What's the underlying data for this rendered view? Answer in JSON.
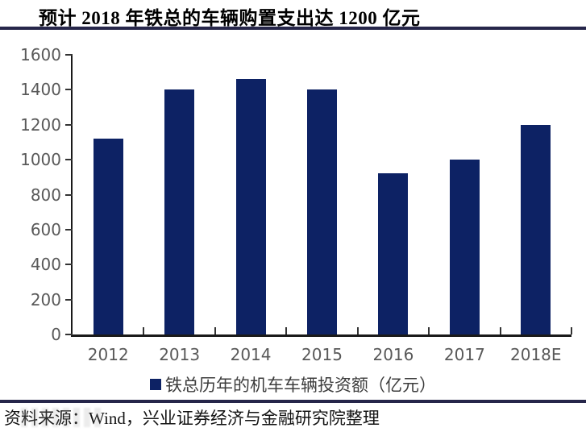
{
  "header": {
    "title": "预计 2018 年铁总的车辆购置支出达 1200 亿元"
  },
  "chart_data": {
    "type": "bar",
    "title": "预计 2018 年铁总的车辆购置支出达 1200 亿元",
    "categories": [
      "2012",
      "2013",
      "2014",
      "2015",
      "2016",
      "2017",
      "2018E"
    ],
    "series": [
      {
        "name": "铁总历年的机车车辆投资额（亿元）",
        "values": [
          1120,
          1400,
          1460,
          1400,
          920,
          1000,
          1200
        ]
      }
    ],
    "xlabel": "",
    "ylabel": "",
    "ylim": [
      0,
      1600
    ],
    "yticks": [
      0,
      200,
      400,
      600,
      800,
      1000,
      1200,
      1400,
      1600
    ],
    "grid": false,
    "legend_position": "bottom"
  },
  "legend": {
    "label": "铁总历年的机车车辆投资额（亿元）"
  },
  "footer": {
    "source": "资料来源：Wind，兴业证券经济与金融研究院整理"
  },
  "colors": {
    "bar": "#0d2264",
    "divider": "#26264a",
    "axis": "#1a1a1a",
    "tick_label": "#595959",
    "legend_text": "#3d3d3d"
  }
}
